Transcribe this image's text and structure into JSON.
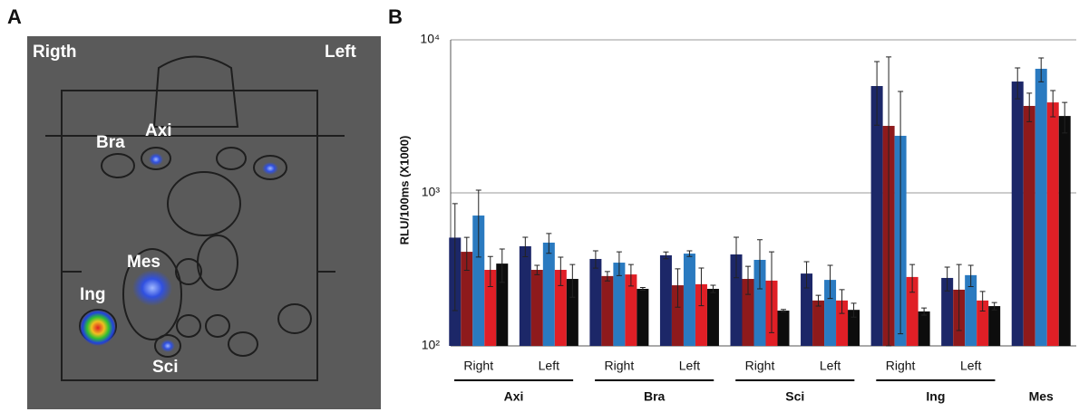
{
  "panels": {
    "a": "A",
    "b": "B"
  },
  "image_labels": {
    "right_side": "Rigth",
    "left_side": "Left",
    "bra": "Bra",
    "axi": "Axi",
    "mes": "Mes",
    "ing": "Ing",
    "sci": "Sci"
  },
  "chart_data": {
    "type": "bar",
    "y_label": "RLU/100ms  (X1000)",
    "log_scale": true,
    "grid": true,
    "ylim": [
      100,
      10000
    ],
    "yticks": [
      {
        "value": 100,
        "label": "10²"
      },
      {
        "value": 1000,
        "label": "10³"
      },
      {
        "value": 10000,
        "label": "10⁴"
      }
    ],
    "categories": [
      "Right",
      "Left",
      "Right",
      "Left",
      "Right",
      "Left",
      "Right",
      "Left",
      null
    ],
    "groups": [
      "Axi",
      "Bra",
      "Sci",
      "Ing",
      "Mes"
    ],
    "series": [
      {
        "color": "#1c2768",
        "values": [
          510,
          448,
          370,
          391,
          396,
          297,
          4990,
          278,
          5340
        ],
        "errors": [
          340,
          65,
          48,
          20,
          117,
          58,
          2220,
          49,
          1220
        ]
      },
      {
        "color": "#8e1a1c",
        "values": [
          412,
          314,
          286,
          249,
          274,
          198,
          2740,
          233,
          3700
        ],
        "errors": [
          100,
          22,
          20,
          70,
          57,
          16,
          4990,
          107,
          780
        ]
      },
      {
        "color": "#2a7ac0",
        "values": [
          711,
          473,
          350,
          401,
          365,
          270,
          2360,
          290,
          6470
        ],
        "errors": [
          330,
          70,
          62,
          17,
          129,
          66,
          2240,
          46,
          1150
        ]
      },
      {
        "color": "#e01f26",
        "values": [
          314,
          314,
          293,
          253,
          267,
          198,
          282,
          198,
          3900
        ],
        "errors": [
          70,
          66,
          47,
          70,
          145,
          35,
          58,
          29,
          760
        ]
      },
      {
        "color": "#0d0d0d",
        "values": [
          345,
          274,
          236,
          236,
          170,
          172,
          168,
          182,
          3180
        ],
        "errors": [
          85,
          66,
          5,
          13,
          3,
          18,
          9,
          10,
          720
        ]
      }
    ]
  }
}
